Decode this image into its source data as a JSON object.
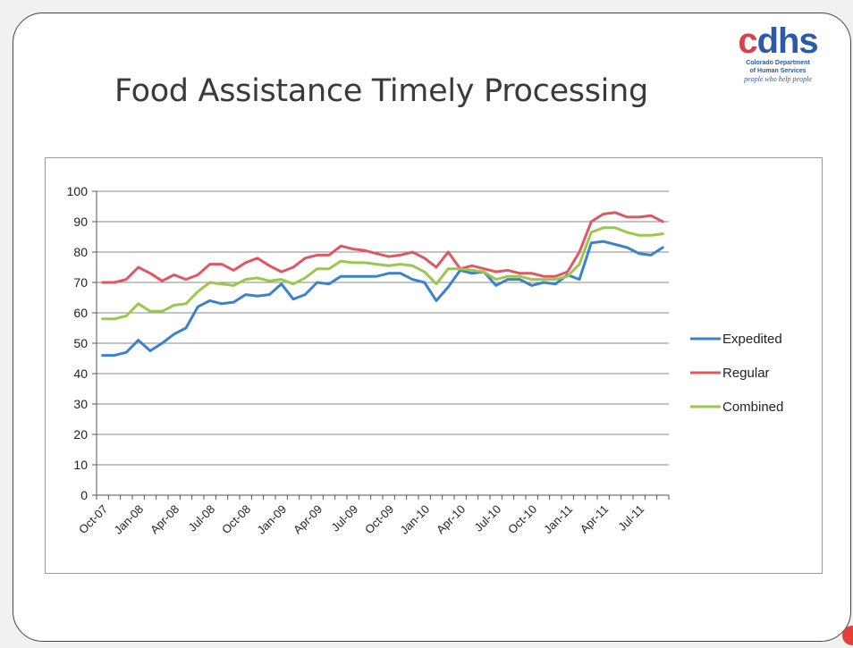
{
  "title": "Food Assistance Timely Processing",
  "logo": {
    "brand": "cdhs",
    "line1": "Colorado Department",
    "line2": "of Human Services",
    "tagline": "people who help people"
  },
  "chart_data": {
    "type": "line",
    "title": "Food Assistance Timely Processing",
    "xlabel": "",
    "ylabel": "",
    "ylim": [
      0,
      100
    ],
    "yticks": [
      0,
      10,
      20,
      30,
      40,
      50,
      60,
      70,
      80,
      90,
      100
    ],
    "grid": true,
    "legend": "right",
    "x": [
      "Oct-07",
      "Nov-07",
      "Dec-07",
      "Jan-08",
      "Feb-08",
      "Mar-08",
      "Apr-08",
      "May-08",
      "Jun-08",
      "Jul-08",
      "Aug-08",
      "Sep-08",
      "Oct-08",
      "Nov-08",
      "Dec-08",
      "Jan-09",
      "Feb-09",
      "Mar-09",
      "Apr-09",
      "May-09",
      "Jun-09",
      "Jul-09",
      "Aug-09",
      "Sep-09",
      "Oct-09",
      "Nov-09",
      "Dec-09",
      "Jan-10",
      "Feb-10",
      "Mar-10",
      "Apr-10",
      "May-10",
      "Jun-10",
      "Jul-10",
      "Aug-10",
      "Sep-10",
      "Oct-10",
      "Nov-10",
      "Dec-10",
      "Jan-11",
      "Feb-11",
      "Mar-11",
      "Apr-11",
      "May-11",
      "Jun-11",
      "Jul-11",
      "Aug-11",
      "Sep-11"
    ],
    "xtick_labels": [
      "Oct-07",
      "Jan-08",
      "Apr-08",
      "Jul-08",
      "Oct-08",
      "Jan-09",
      "Apr-09",
      "Jul-09",
      "Oct-09",
      "Jan-10",
      "Apr-10",
      "Jul-10",
      "Oct-10",
      "Jan-11",
      "Apr-11",
      "Jul-11"
    ],
    "series": [
      {
        "name": "Expedited",
        "color": "#3b82cc",
        "values": [
          46,
          46,
          47,
          51,
          47.5,
          50,
          53,
          55,
          62,
          64,
          63,
          63.5,
          66,
          65.5,
          66,
          69.5,
          64.5,
          66,
          70,
          69.5,
          72,
          72,
          72,
          72,
          73,
          73,
          71,
          70,
          64,
          68.5,
          74,
          73,
          73.5,
          69,
          71,
          71,
          69,
          70,
          69.5,
          72.5,
          71,
          83,
          83.5,
          82.5,
          81.5,
          79.5,
          79,
          81.5
        ]
      },
      {
        "name": "Regular",
        "color": "#e15663",
        "values": [
          70,
          70,
          71,
          75,
          73,
          70.5,
          72.5,
          71,
          72.5,
          76,
          76,
          74,
          76.5,
          78,
          75.5,
          73.5,
          75,
          78,
          79,
          79,
          82,
          81,
          80.5,
          79.5,
          78.5,
          79,
          80,
          78,
          75,
          80,
          74.5,
          75.5,
          74.5,
          73.5,
          74,
          73,
          73,
          72,
          72,
          73.5,
          80,
          90,
          92.5,
          93,
          91.5,
          91.5,
          92,
          90
        ]
      },
      {
        "name": "Combined",
        "color": "#9bc84c",
        "values": [
          58,
          58,
          59,
          63,
          60.5,
          60.5,
          62.5,
          63,
          67,
          70,
          69.5,
          69,
          71,
          71.5,
          70.5,
          71,
          69.5,
          71.5,
          74.5,
          74.5,
          77,
          76.5,
          76.5,
          76,
          75.5,
          76,
          75.5,
          73.5,
          69.5,
          74.5,
          74.5,
          74,
          73.5,
          71,
          72,
          72,
          71,
          71,
          71,
          72,
          76,
          86.5,
          88,
          88,
          86.5,
          85.5,
          85.5,
          86
        ]
      }
    ]
  }
}
